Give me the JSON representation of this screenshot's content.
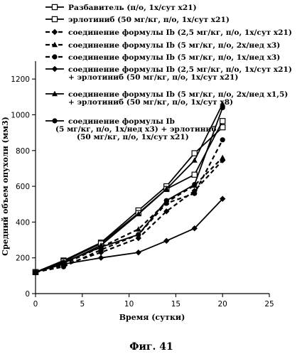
{
  "chart_data": {
    "type": "line",
    "caption": "Фиг. 41",
    "xlabel": "Время (сутки)",
    "ylabel": "Средний объем опухоли (мм3)",
    "xlim": [
      0,
      25
    ],
    "ylim": [
      0,
      1300
    ],
    "xticks": [
      0,
      5,
      10,
      15,
      20,
      25
    ],
    "yticks": [
      0,
      200,
      400,
      600,
      800,
      1000,
      1200
    ],
    "grid": false,
    "legend_position": "top-right",
    "series": [
      {
        "name": "Разбавитель (п/о, 1х/сут х21)",
        "marker": "open-square",
        "dash": "solid",
        "x": [
          0,
          3,
          7,
          11,
          14,
          17,
          20
        ],
        "y": [
          120,
          185,
          285,
          465,
          600,
          785,
          930
        ]
      },
      {
        "name": "эрлотиниб (50 мг/кг, п/о, 1х/сут х21)",
        "marker": "open-square",
        "dash": "solid",
        "x": [
          0,
          3,
          7,
          11,
          14,
          17,
          20
        ],
        "y": [
          120,
          180,
          280,
          450,
          585,
          665,
          965
        ]
      },
      {
        "name": "соединение формулы Ib (2,5 мг/кг, п/о, 1х/сут х21)",
        "marker": "diamond",
        "dash": "dashed",
        "x": [
          0,
          3,
          7,
          11,
          14,
          17,
          20
        ],
        "y": [
          120,
          160,
          230,
          310,
          460,
          575,
          745
        ]
      },
      {
        "name": "соединение формулы Ib (5 мг/кг, п/о, 2х/нед х3)",
        "marker": "triangle",
        "dash": "dashed",
        "x": [
          0,
          3,
          7,
          11,
          14,
          17,
          20
        ],
        "y": [
          120,
          165,
          260,
          360,
          510,
          605,
          760
        ]
      },
      {
        "name": "соединение формулы Ib (5 мг/кг, п/о, 1х/нед х3)",
        "marker": "circle",
        "dash": "dashed",
        "x": [
          0,
          3,
          7,
          11,
          14,
          17,
          20
        ],
        "y": [
          120,
          150,
          245,
          330,
          505,
          560,
          860
        ]
      },
      {
        "name": "соединение формулы Ib (2,5 мг/кг, п/о, 1х/сут х21) + эрлотиниб (50 мг/кг, п/о, 1х/сут х21)",
        "marker": "diamond",
        "dash": "solid",
        "x": [
          0,
          3,
          7,
          11,
          14,
          17,
          20
        ],
        "y": [
          120,
          165,
          200,
          230,
          295,
          365,
          530
        ]
      },
      {
        "name": "соединение формулы Ib (5 мг/кг, п/о, 2х/нед х1,5) + эрлотиниб (50 мг/кг, п/о, 1х/сут х8)",
        "marker": "triangle",
        "dash": "solid",
        "x": [
          0,
          3,
          7,
          11,
          14,
          17,
          20
        ],
        "y": [
          120,
          170,
          270,
          445,
          585,
          745,
          1060
        ]
      },
      {
        "name": "соединение формулы Ib (5 мг/кг, п/о, 1х/нед х3) + эрлотиниб (50 мг/кг, п/о, 1х/сут х21)",
        "marker": "circle",
        "dash": "solid",
        "x": [
          0,
          3,
          7,
          11,
          14,
          17,
          20
        ],
        "y": [
          120,
          175,
          260,
          330,
          520,
          610,
          1040
        ]
      }
    ],
    "legend_lines": [
      [
        "Разбавитель (п/о, 1х/сут х21)"
      ],
      [
        "эрлотиниб (50 мг/кг, п/о, 1х/сут х21)"
      ],
      [
        "соединение формулы Ib (2,5 мг/кг, п/о, 1х/сут х21)"
      ],
      [
        "соединение формулы Ib (5 мг/кг, п/о, 2х/нед х3)"
      ],
      [
        "соединение формулы Ib (5 мг/кг, п/о, 1х/нед х3)"
      ],
      [
        "соединение формулы Ib (2,5 мг/кг, п/о, 1х/сут х21)",
        "+ эрлотиниб (50 мг/кг, п/о, 1х/сут х21)"
      ],
      [
        "соединение формулы Ib (5 мг/кг, п/о, 2х/нед х1,5)",
        "+ эрлотиниб (50 мг/кг, п/о, 1х/сут х8)"
      ],
      [
        "соединение формулы Ib",
        "(5 мг/кг, п/о, 1х/нед х3) + эрлотиниб",
        "(50 мг/кг, п/о, 1х/сут х21)"
      ]
    ]
  }
}
